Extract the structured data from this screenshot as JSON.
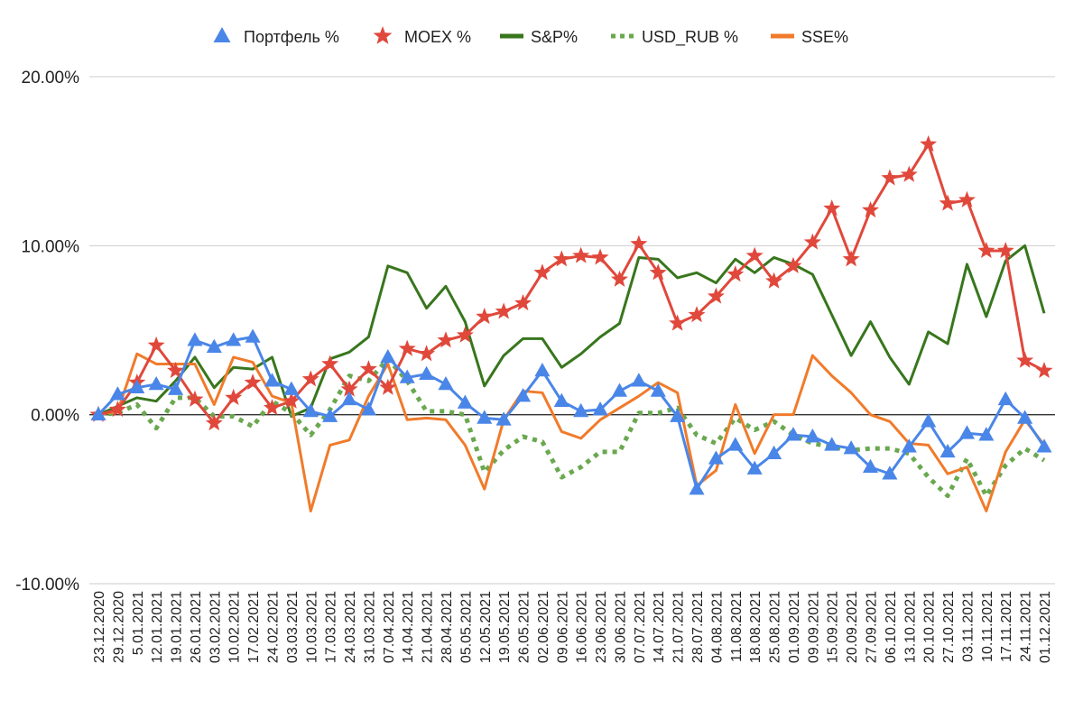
{
  "chart_data": {
    "type": "line",
    "title": "",
    "xlabel": "",
    "ylabel": "",
    "ylim": [
      -10,
      20
    ],
    "yticks": [
      {
        "value": 20,
        "label": "20.00%"
      },
      {
        "value": 10,
        "label": "10.00%"
      },
      {
        "value": 0,
        "label": "0.00%"
      },
      {
        "value": -10,
        "label": "-10.00%"
      }
    ],
    "grid": true,
    "legend_position": "top",
    "categories": [
      "23.12.2020",
      "29.12.2020",
      "5.01.2021",
      "12.01.2021",
      "19.01.2021",
      "26.01.2021",
      "03.02.2021",
      "10.02.2021",
      "17.02.2021",
      "24.02.2021",
      "03.03.2021",
      "10.03.2021",
      "17.03.2021",
      "24.03.2021",
      "31.03.2021",
      "07.04.2021",
      "14.04.2021",
      "21.04.2021",
      "28.04.2021",
      "05.05.2021",
      "12.05.2021",
      "19.05.2021",
      "26.05.2021",
      "02.06.2021",
      "09.06.2021",
      "16.06.2021",
      "23.06.2021",
      "30.06.2021",
      "07.07.2021",
      "14.07.2021",
      "21.07.2021",
      "28.07.2021",
      "04.08.2021",
      "11.08.2021",
      "18.08.2021",
      "25.08.2021",
      "01.09.2021",
      "09.09.2021",
      "15.09.2021",
      "20.09.2021",
      "27.09.2021",
      "06.10.2021",
      "13.10.2021",
      "20.10.2021",
      "27.10.2021",
      "03.11.2021",
      "10.11.2021",
      "17.11.2021",
      "24.11.2021",
      "01.12.2021"
    ],
    "series": [
      {
        "name": "Портфель %",
        "color": "#4a86e8",
        "style": "solid",
        "marker": "triangle",
        "values": [
          0,
          1.2,
          1.6,
          1.8,
          1.5,
          4.4,
          4.0,
          4.4,
          4.6,
          2.0,
          1.5,
          0.2,
          -0.1,
          0.9,
          0.3,
          3.4,
          2.2,
          2.4,
          1.8,
          0.7,
          -0.2,
          -0.3,
          1.1,
          2.6,
          0.8,
          0.2,
          0.3,
          1.4,
          2.0,
          1.4,
          -0.1,
          -4.4,
          -2.6,
          -1.8,
          -3.2,
          -2.3,
          -1.2,
          -1.3,
          -1.8,
          -2.0,
          -3.1,
          -3.5,
          -1.9,
          -0.4,
          -2.2,
          -1.1,
          -1.2,
          0.9,
          -0.2,
          -1.9
        ]
      },
      {
        "name": "MOEX %",
        "color": "#e0483b",
        "style": "solid",
        "marker": "star",
        "values": [
          0,
          0.3,
          1.9,
          4.1,
          2.6,
          0.9,
          -0.5,
          1.0,
          1.9,
          0.4,
          0.8,
          2.1,
          3.0,
          1.5,
          2.7,
          1.6,
          3.9,
          3.6,
          4.4,
          4.7,
          5.8,
          6.1,
          6.6,
          8.4,
          9.2,
          9.4,
          9.3,
          8.0,
          10.1,
          8.4,
          5.4,
          5.9,
          7.0,
          8.3,
          9.4,
          7.9,
          8.8,
          10.2,
          12.2,
          9.2,
          12.1,
          14.0,
          14.2,
          16.0,
          12.5,
          12.7,
          9.7,
          9.7,
          3.2,
          2.6
        ]
      },
      {
        "name": "S&P%",
        "color": "#38761d",
        "style": "solid",
        "marker": "none",
        "values": [
          0,
          0.5,
          1.0,
          0.8,
          2.0,
          3.4,
          1.6,
          2.8,
          2.7,
          3.4,
          -0.1,
          0.4,
          3.3,
          3.7,
          4.6,
          8.8,
          8.4,
          6.3,
          7.6,
          5.5,
          1.7,
          3.5,
          4.5,
          4.5,
          2.8,
          3.6,
          4.6,
          5.4,
          9.3,
          9.2,
          8.1,
          8.4,
          7.8,
          9.2,
          8.4,
          9.3,
          8.9,
          8.3,
          5.9,
          3.5,
          5.5,
          3.4,
          1.8,
          4.9,
          4.2,
          8.9,
          5.8,
          9.1,
          10.0,
          6.0
        ]
      },
      {
        "name": "USD_RUB %",
        "color": "#6aa84f",
        "style": "dotted",
        "marker": "none",
        "values": [
          0,
          0.1,
          0.6,
          -0.8,
          1.0,
          1.0,
          -0.1,
          -0.1,
          -0.7,
          0.8,
          0.1,
          -1.2,
          0.3,
          2.3,
          2.0,
          3.3,
          2.0,
          0.2,
          0.2,
          0.0,
          -3.4,
          -2.1,
          -1.3,
          -1.6,
          -3.7,
          -3.1,
          -2.2,
          -2.2,
          0.1,
          0.1,
          0.4,
          -1.2,
          -1.7,
          -0.2,
          -0.9,
          -0.4,
          -1.2,
          -1.7,
          -1.9,
          -2.1,
          -2.0,
          -2.0,
          -2.3,
          -3.7,
          -4.8,
          -2.6,
          -4.8,
          -3.0,
          -2.0,
          -2.7
        ]
      },
      {
        "name": "SSE%",
        "color": "#f07b2b",
        "style": "solid",
        "marker": "none",
        "values": [
          0,
          0.2,
          3.6,
          3.0,
          3.0,
          3.0,
          0.6,
          3.4,
          3.1,
          1.1,
          0.7,
          -5.7,
          -1.8,
          -1.5,
          1.1,
          3.0,
          -0.3,
          -0.2,
          -0.3,
          -1.8,
          -4.4,
          -0.3,
          1.4,
          1.3,
          -1.0,
          -1.4,
          -0.3,
          0.4,
          1.1,
          1.9,
          1.3,
          -4.2,
          -3.3,
          0.6,
          -2.3,
          0.0,
          0.0,
          3.5,
          2.3,
          1.3,
          0.0,
          -0.4,
          -1.7,
          -1.8,
          -3.5,
          -3.1,
          -5.7,
          -2.2,
          -0.3,
          -1.8
        ]
      }
    ]
  }
}
